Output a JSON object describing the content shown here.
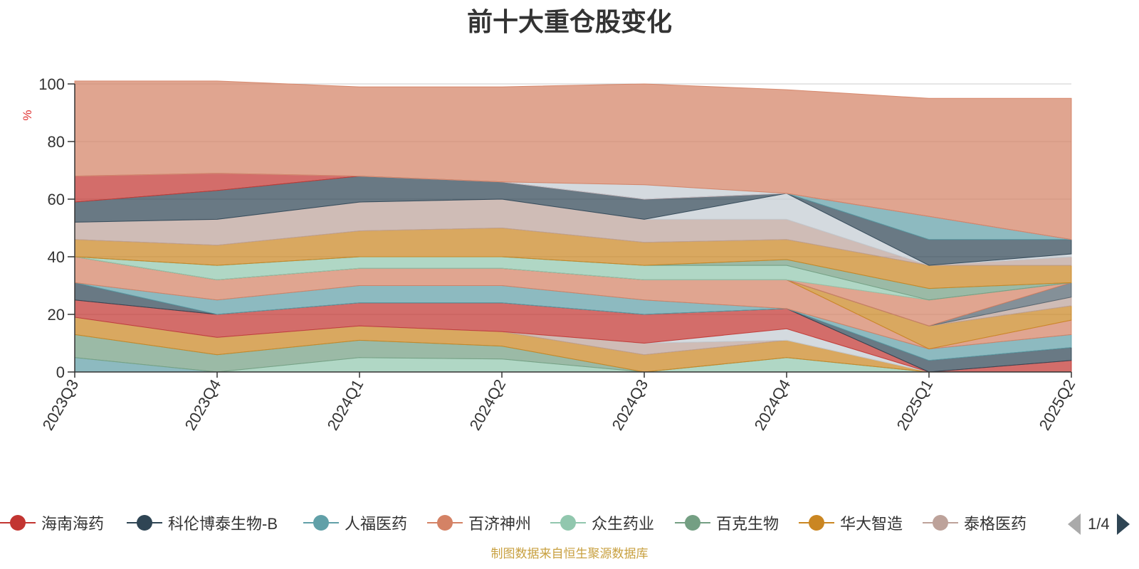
{
  "chart_data": {
    "type": "area",
    "stacked": true,
    "title": "前十大重仓股变化",
    "ylabel": "%",
    "ylim": [
      0,
      100
    ],
    "yticks": [
      0,
      20,
      40,
      60,
      80,
      100
    ],
    "grid": true,
    "legend_position": "bottom",
    "legend_page": "1/4",
    "x": [
      "2023Q3",
      "2023Q4",
      "2024Q1",
      "2024Q2",
      "2024Q3",
      "2024Q4",
      "2025Q1",
      "2025Q2"
    ],
    "series": [
      {
        "name": "人福医药",
        "color": "#61a0a8",
        "values": [
          5,
          0,
          0,
          0,
          0,
          0,
          0,
          0
        ]
      },
      {
        "name": "众生药业",
        "color": "#91c7ae",
        "values": [
          0,
          0,
          5,
          4.5,
          0,
          5,
          0,
          0
        ]
      },
      {
        "name": "百克生物",
        "color": "#749f83",
        "values": [
          8,
          6,
          6,
          4.5,
          0,
          0,
          0,
          0
        ]
      },
      {
        "name": "华大智造",
        "color": "#ca8622",
        "values": [
          6,
          6,
          5,
          5,
          6,
          6,
          0,
          0
        ]
      },
      {
        "name": "泰格医药",
        "color": "#bda29a",
        "values": [
          0,
          0,
          0,
          0,
          4,
          0,
          0,
          0
        ]
      },
      {
        "name": "",
        "color": "#c4ccd3",
        "values": [
          0,
          0,
          0,
          0,
          0,
          4,
          0,
          0
        ]
      },
      {
        "name": "海南海药",
        "color": "#c23531",
        "values": [
          6,
          8,
          8,
          10,
          10,
          7,
          0,
          4
        ]
      },
      {
        "name": "科伦博泰生物-B",
        "color": "#2f4554",
        "values": [
          6,
          0,
          0,
          0,
          0,
          0,
          4,
          4.5
        ]
      },
      {
        "name": "人福医药",
        "color": "#61a0a8",
        "values": [
          0,
          5,
          6,
          6,
          5,
          0,
          4,
          4.5
        ]
      },
      {
        "name": "百济神州",
        "color": "#d48265",
        "values": [
          9,
          7,
          6,
          6,
          7,
          10,
          0,
          5
        ]
      },
      {
        "name": "华大智造",
        "color": "#ca8622",
        "values": [
          0,
          0,
          0,
          0,
          0,
          0,
          8,
          5
        ]
      },
      {
        "name": "泰格医药",
        "color": "#bda29a",
        "values": [
          0,
          0,
          0,
          0,
          0,
          0,
          0,
          3
        ]
      },
      {
        "name": "",
        "color": "#546570",
        "values": [
          0,
          0,
          0,
          0,
          0,
          0,
          0,
          5
        ]
      },
      {
        "name": "百济神州",
        "color": "#d48265",
        "values": [
          0,
          0,
          0,
          0,
          0,
          0,
          9,
          0
        ]
      },
      {
        "name": "众生药业",
        "color": "#91c7ae",
        "values": [
          0,
          5,
          4,
          4,
          5,
          5,
          0,
          0
        ]
      },
      {
        "name": "百克生物",
        "color": "#749f83",
        "values": [
          0,
          0,
          0,
          0,
          0,
          2,
          4,
          0
        ]
      },
      {
        "name": "华大智造",
        "color": "#ca8622",
        "values": [
          6,
          7,
          9,
          10,
          8,
          7,
          8,
          6
        ]
      },
      {
        "name": "泰格医药",
        "color": "#bda29a",
        "values": [
          6,
          9,
          10,
          10,
          8,
          7,
          0,
          3
        ]
      },
      {
        "name": "",
        "color": "#c4ccd3",
        "values": [
          0,
          0,
          0,
          0,
          0,
          9,
          0,
          1
        ]
      },
      {
        "name": "科伦博泰生物-B",
        "color": "#2f4554",
        "values": [
          7,
          10,
          9,
          6,
          7,
          0,
          9,
          5
        ]
      },
      {
        "name": "人福医药",
        "color": "#61a0a8",
        "values": [
          0,
          0,
          0,
          0,
          0,
          0,
          8,
          0
        ]
      },
      {
        "name": "海南海药",
        "color": "#c23531",
        "values": [
          9,
          6,
          0,
          0,
          0,
          0,
          0,
          0
        ]
      },
      {
        "name": "",
        "color": "#c4ccd3",
        "values": [
          0,
          0,
          0,
          0,
          5,
          0,
          0,
          0
        ]
      },
      {
        "name": "百济神州",
        "color": "#d48265",
        "values": [
          33,
          32,
          31,
          33,
          35,
          36,
          41,
          49
        ]
      }
    ]
  },
  "legend": [
    {
      "label": "海南海药",
      "color": "#c23531"
    },
    {
      "label": "科伦博泰生物-B",
      "color": "#2f4554"
    },
    {
      "label": "人福医药",
      "color": "#61a0a8"
    },
    {
      "label": "百济神州",
      "color": "#d48265"
    },
    {
      "label": "众生药业",
      "color": "#91c7ae"
    },
    {
      "label": "百克生物",
      "color": "#749f83"
    },
    {
      "label": "华大智造",
      "color": "#ca8622"
    },
    {
      "label": "泰格医药",
      "color": "#bda29a"
    }
  ],
  "pager": {
    "text": "1/4",
    "prev_icon": "triangle-left-icon",
    "next_icon": "triangle-right-icon"
  },
  "source_note": "制图数据来自恒生聚源数据库"
}
